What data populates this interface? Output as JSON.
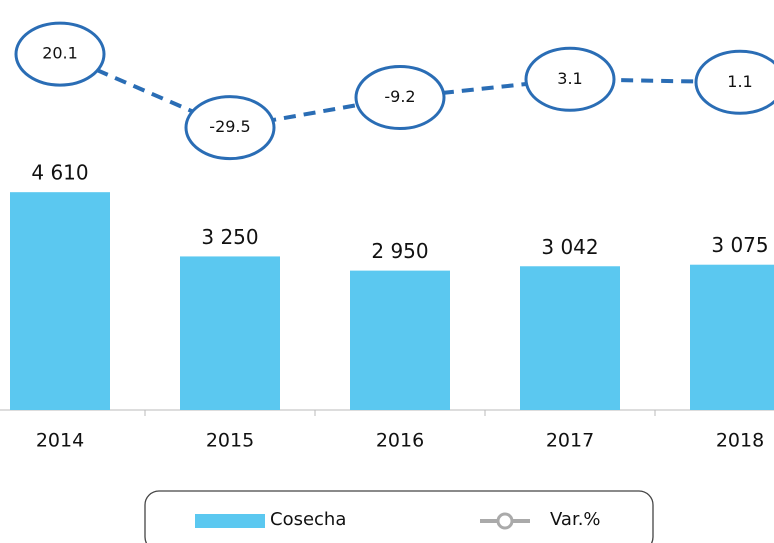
{
  "chart_data": {
    "type": "bar",
    "categories": [
      "2014",
      "2015",
      "2016",
      "2017",
      "2018"
    ],
    "series": [
      {
        "name": "Cosecha",
        "type": "bar",
        "color": "#5bc8f0",
        "values": [
          4610,
          3250,
          2950,
          3042,
          3075
        ],
        "value_labels": [
          "4 610",
          "3 250",
          "2 950",
          "3 042",
          "3 075"
        ]
      },
      {
        "name": "Var.%",
        "type": "line",
        "axis": "y2",
        "color": "#2a6db5",
        "values": [
          20.1,
          -29.5,
          -9.2,
          3.1,
          1.1
        ]
      }
    ],
    "ylim": [
      0,
      8000
    ],
    "y2lim": [
      -220,
      35
    ],
    "legend": "bottom"
  }
}
